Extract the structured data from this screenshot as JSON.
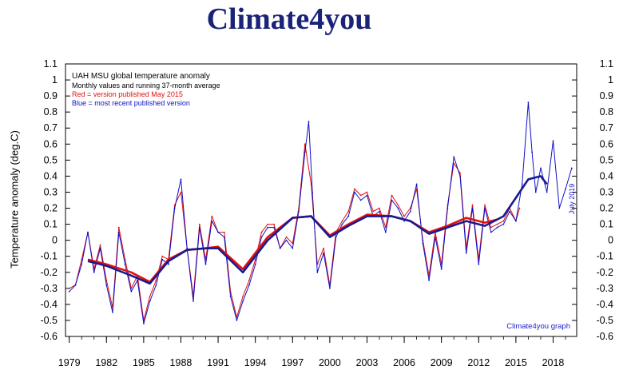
{
  "brand": "Climate4you",
  "legend": {
    "title": "UAH MSU global temperature anomaly",
    "subtitle": "Monthly values and running 37-month average",
    "red_text": "Red = version published May 2015",
    "blue_text": "Blue = most recent published version"
  },
  "credit": "Climate4you graph",
  "date_stamp": "July 2019",
  "colors": {
    "brand": "#1a2378",
    "red_series": "#e01010",
    "blue_series": "#1010c8",
    "running_mean": "#1a1a90"
  },
  "chart_data": {
    "type": "line",
    "ylabel": "Temperature anomaly (deg.C)",
    "xlim": [
      1978.7,
      2019.9
    ],
    "ylim": [
      -0.6,
      1.1
    ],
    "x_ticks": [
      1979,
      1982,
      1985,
      1988,
      1991,
      1994,
      1997,
      2000,
      2003,
      2006,
      2009,
      2012,
      2015,
      2018
    ],
    "y_ticks": [
      "1.1",
      "1",
      "0.9",
      "0.8",
      "0.7",
      "0.6",
      "0.5",
      "0.4",
      "0.3",
      "0.2",
      "0.1",
      "0",
      "-0.1",
      "-0.2",
      "-0.3",
      "-0.4",
      "-0.5",
      "-0.6"
    ],
    "grid": false,
    "legend_position": "top-left",
    "series": [
      {
        "name": "Red = version published May 2015",
        "color": "#e01010",
        "kind": "monthly",
        "x": [
          1979.0,
          1979.5,
          1980.0,
          1980.5,
          1981.0,
          1981.5,
          1982.0,
          1982.5,
          1983.0,
          1983.5,
          1984.0,
          1984.5,
          1985.0,
          1985.5,
          1986.0,
          1986.5,
          1987.0,
          1987.5,
          1988.0,
          1988.5,
          1989.0,
          1989.5,
          1990.0,
          1990.5,
          1991.0,
          1991.5,
          1992.0,
          1992.5,
          1993.0,
          1993.5,
          1994.0,
          1994.5,
          1995.0,
          1995.5,
          1996.0,
          1996.5,
          1997.0,
          1997.5,
          1998.0,
          1998.5,
          1999.0,
          1999.5,
          2000.0,
          2000.5,
          2001.0,
          2001.5,
          2002.0,
          2002.5,
          2003.0,
          2003.5,
          2004.0,
          2004.5,
          2005.0,
          2005.5,
          2006.0,
          2006.5,
          2007.0,
          2007.5,
          2008.0,
          2008.5,
          2009.0,
          2009.5,
          2010.0,
          2010.5,
          2011.0,
          2011.5,
          2012.0,
          2012.5,
          2013.0,
          2013.5,
          2014.0,
          2014.5,
          2015.0,
          2015.3
        ],
        "y": [
          -0.3,
          -0.28,
          -0.12,
          0.05,
          -0.18,
          -0.03,
          -0.25,
          -0.42,
          0.08,
          -0.12,
          -0.3,
          -0.22,
          -0.5,
          -0.35,
          -0.25,
          -0.1,
          -0.12,
          0.22,
          0.3,
          -0.05,
          -0.35,
          0.1,
          -0.12,
          0.15,
          0.05,
          0.05,
          -0.32,
          -0.48,
          -0.35,
          -0.25,
          -0.12,
          0.05,
          0.1,
          0.1,
          -0.05,
          0.02,
          -0.02,
          0.2,
          0.6,
          0.35,
          -0.15,
          -0.05,
          -0.28,
          0.05,
          0.12,
          0.18,
          0.32,
          0.28,
          0.3,
          0.18,
          0.2,
          0.08,
          0.28,
          0.22,
          0.15,
          0.2,
          0.32,
          0.0,
          -0.22,
          0.05,
          -0.15,
          0.22,
          0.48,
          0.42,
          -0.05,
          0.22,
          -0.12,
          0.22,
          0.08,
          0.1,
          0.12,
          0.2,
          0.12,
          0.2
        ]
      },
      {
        "name": "Blue = most recent published version",
        "color": "#1010c8",
        "kind": "monthly",
        "x": [
          1979.0,
          1979.5,
          1980.0,
          1980.5,
          1981.0,
          1981.5,
          1982.0,
          1982.5,
          1983.0,
          1983.5,
          1984.0,
          1984.5,
          1985.0,
          1985.5,
          1986.0,
          1986.5,
          1987.0,
          1987.5,
          1988.0,
          1988.5,
          1989.0,
          1989.5,
          1990.0,
          1990.5,
          1991.0,
          1991.5,
          1992.0,
          1992.5,
          1993.0,
          1993.5,
          1994.0,
          1994.5,
          1995.0,
          1995.5,
          1996.0,
          1996.5,
          1997.0,
          1997.5,
          1998.0,
          1998.3,
          1998.6,
          1999.0,
          1999.5,
          2000.0,
          2000.5,
          2001.0,
          2001.5,
          2002.0,
          2002.5,
          2003.0,
          2003.5,
          2004.0,
          2004.5,
          2005.0,
          2005.5,
          2006.0,
          2006.5,
          2007.0,
          2007.5,
          2008.0,
          2008.5,
          2009.0,
          2009.5,
          2010.0,
          2010.5,
          2011.0,
          2011.5,
          2012.0,
          2012.5,
          2013.0,
          2013.5,
          2014.0,
          2014.5,
          2015.0,
          2015.5,
          2016.0,
          2016.3,
          2016.6,
          2017.0,
          2017.5,
          2018.0,
          2018.5,
          2019.0,
          2019.5
        ],
        "y": [
          -0.32,
          -0.28,
          -0.15,
          0.05,
          -0.2,
          -0.05,
          -0.28,
          -0.45,
          0.05,
          -0.15,
          -0.32,
          -0.25,
          -0.52,
          -0.38,
          -0.28,
          -0.12,
          -0.15,
          0.2,
          0.38,
          -0.05,
          -0.38,
          0.08,
          -0.15,
          0.12,
          0.05,
          0.02,
          -0.35,
          -0.5,
          -0.38,
          -0.28,
          -0.15,
          0.02,
          0.08,
          0.08,
          -0.05,
          0.0,
          -0.05,
          0.18,
          0.55,
          0.74,
          0.3,
          -0.2,
          -0.08,
          -0.3,
          0.02,
          0.1,
          0.15,
          0.3,
          0.25,
          0.28,
          0.15,
          0.18,
          0.05,
          0.25,
          0.2,
          0.12,
          0.18,
          0.35,
          -0.02,
          -0.25,
          0.02,
          -0.18,
          0.2,
          0.52,
          0.4,
          -0.08,
          0.2,
          -0.15,
          0.2,
          0.05,
          0.08,
          0.1,
          0.18,
          0.12,
          0.35,
          0.86,
          0.55,
          0.3,
          0.45,
          0.3,
          0.62,
          0.2,
          0.32,
          0.45
        ]
      },
      {
        "name": "",
        "color": "#e01010",
        "kind": "running-mean",
        "x": [
          1980.5,
          1982.0,
          1984.0,
          1985.5,
          1987.0,
          1988.5,
          1990.0,
          1991.0,
          1993.0,
          1995.0,
          1997.0,
          1998.5,
          2000.0,
          2001.5,
          2003.0,
          2005.0,
          2006.5,
          2008.0,
          2009.5,
          2011.0,
          2012.5,
          2013.5
        ],
        "y": [
          -0.12,
          -0.15,
          -0.2,
          -0.26,
          -0.12,
          -0.06,
          -0.05,
          -0.04,
          -0.18,
          0.02,
          0.14,
          0.15,
          0.03,
          0.1,
          0.16,
          0.15,
          0.12,
          0.05,
          0.09,
          0.14,
          0.11,
          0.13
        ]
      },
      {
        "name": "",
        "color": "#1a1a90",
        "kind": "running-mean",
        "x": [
          1980.5,
          1982.0,
          1984.0,
          1985.5,
          1987.0,
          1988.5,
          1990.0,
          1991.0,
          1993.0,
          1995.0,
          1997.0,
          1998.5,
          2000.0,
          2001.5,
          2003.0,
          2005.0,
          2006.5,
          2008.0,
          2009.5,
          2011.0,
          2012.5,
          2014.0,
          2016.0,
          2017.0,
          2017.5
        ],
        "y": [
          -0.13,
          -0.16,
          -0.22,
          -0.27,
          -0.13,
          -0.06,
          -0.05,
          -0.05,
          -0.2,
          0.0,
          0.14,
          0.15,
          0.02,
          0.09,
          0.15,
          0.15,
          0.12,
          0.04,
          0.08,
          0.12,
          0.09,
          0.15,
          0.38,
          0.4,
          0.35
        ]
      }
    ]
  }
}
